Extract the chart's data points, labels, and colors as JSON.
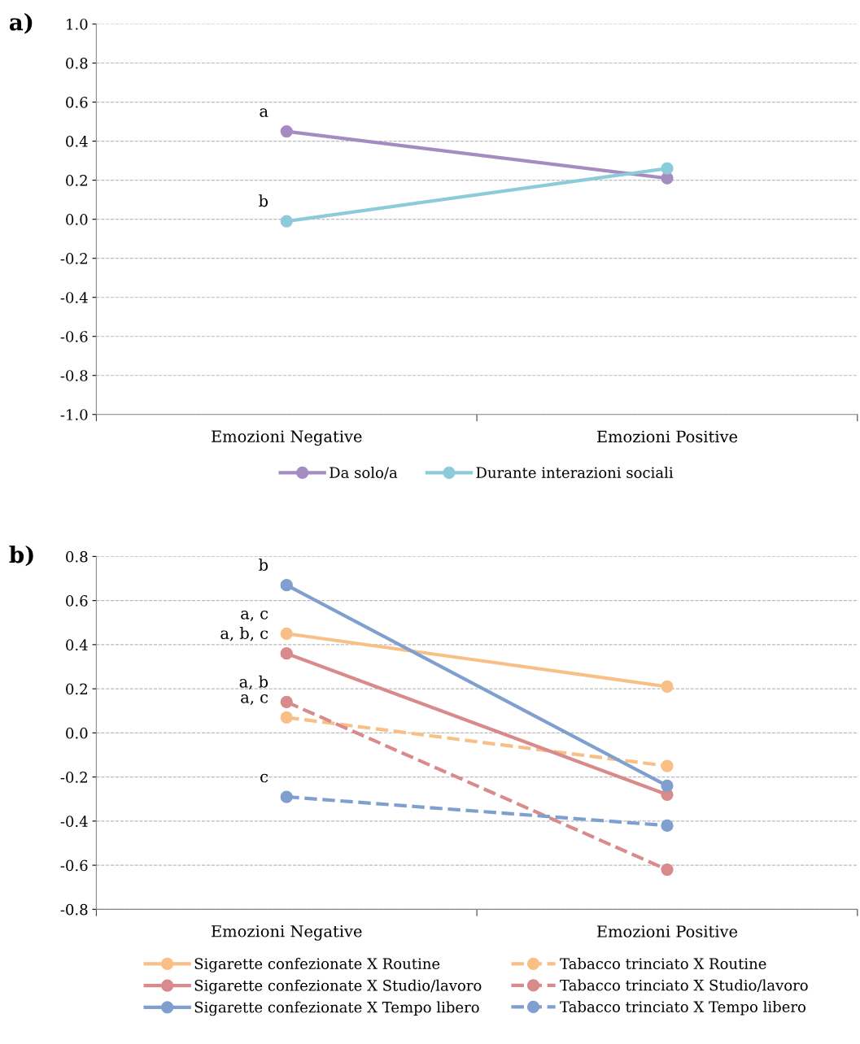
{
  "chart_data": [
    {
      "type": "line",
      "title": "a)",
      "categories": [
        "Emozioni Negative",
        "Emozioni Positive"
      ],
      "series": [
        {
          "name": "Da solo/a",
          "color": "#a48cc0",
          "values": [
            0.45,
            0.21
          ]
        },
        {
          "name": "Durante interazioni sociali",
          "color": "#8ccbd9",
          "values": [
            -0.01,
            0.26
          ]
        }
      ],
      "ylim": [
        -1.0,
        1.0
      ],
      "yticks": [
        {
          "value": -1.0,
          "label": "-1.0"
        },
        {
          "value": -0.8,
          "label": "-0.8"
        },
        {
          "value": -0.6,
          "label": "-0.6"
        },
        {
          "value": -0.4,
          "label": "-0.4"
        },
        {
          "value": -0.2,
          "label": "-0.2"
        },
        {
          "value": 0.0,
          "label": "0.0"
        },
        {
          "value": 0.2,
          "label": "0.2"
        },
        {
          "value": 0.4,
          "label": "0.4"
        },
        {
          "value": 0.6,
          "label": "0.6"
        },
        {
          "value": 0.8,
          "label": "0.8"
        },
        {
          "value": 1.0,
          "label": "1.0"
        }
      ],
      "grid": "y",
      "legend": "bottom",
      "marker": "circle",
      "line_style": "solid",
      "annotations": [
        {
          "text": "a",
          "x": "Emozioni Negative",
          "y": 0.45
        },
        {
          "text": "b",
          "x": "Emozioni Negative",
          "y": -0.01
        }
      ]
    },
    {
      "type": "line",
      "title": "b)",
      "categories": [
        "Emozioni Negative",
        "Emozioni Positive"
      ],
      "series": [
        {
          "name": "Sigarette confezionate X Routine",
          "color": "#f8bf87",
          "values": [
            0.45,
            0.21
          ],
          "line_style": "solid"
        },
        {
          "name": "Tabacco trinciato X Routine",
          "color": "#f8bf87",
          "values": [
            0.07,
            -0.15
          ],
          "line_style": "dashed"
        },
        {
          "name": "Sigarette confezionate X Studio/lavoro",
          "color": "#d98a8a",
          "values": [
            0.36,
            -0.28
          ],
          "line_style": "solid"
        },
        {
          "name": "Tabacco trinciato X Studio/lavoro",
          "color": "#d98a8a",
          "values": [
            0.14,
            -0.62
          ],
          "line_style": "dashed"
        },
        {
          "name": "Sigarette confezionate X Tempo libero",
          "color": "#7f9fcf",
          "values": [
            0.67,
            -0.24
          ],
          "line_style": "solid"
        },
        {
          "name": "Tabacco trinciato X Tempo libero",
          "color": "#7f9fcf",
          "values": [
            -0.29,
            -0.42
          ],
          "line_style": "dashed"
        }
      ],
      "ylim": [
        -0.8,
        0.8
      ],
      "yticks": [
        {
          "value": -0.8,
          "label": "-0.8"
        },
        {
          "value": -0.6,
          "label": "-0.6"
        },
        {
          "value": -0.4,
          "label": "-0.4"
        },
        {
          "value": -0.2,
          "label": "-0.2"
        },
        {
          "value": 0.0,
          "label": "0.0"
        },
        {
          "value": 0.2,
          "label": "0.2"
        },
        {
          "value": 0.4,
          "label": "0.4"
        },
        {
          "value": 0.6,
          "label": "0.6"
        },
        {
          "value": 0.8,
          "label": "0.8"
        }
      ],
      "grid": "y",
      "legend": "bottom",
      "marker": "circle",
      "annotations": [
        {
          "text": "b",
          "x": "Emozioni Negative",
          "y": 0.67
        },
        {
          "text": "a, c",
          "x": "Emozioni Negative",
          "y": 0.45
        },
        {
          "text": "a, b, c",
          "x": "Emozioni Negative",
          "y": 0.36
        },
        {
          "text": "a, b",
          "x": "Emozioni Negative",
          "y": 0.14
        },
        {
          "text": "a, c",
          "x": "Emozioni Negative",
          "y": 0.07
        },
        {
          "text": "c",
          "x": "Emozioni Negative",
          "y": -0.29
        }
      ]
    }
  ]
}
